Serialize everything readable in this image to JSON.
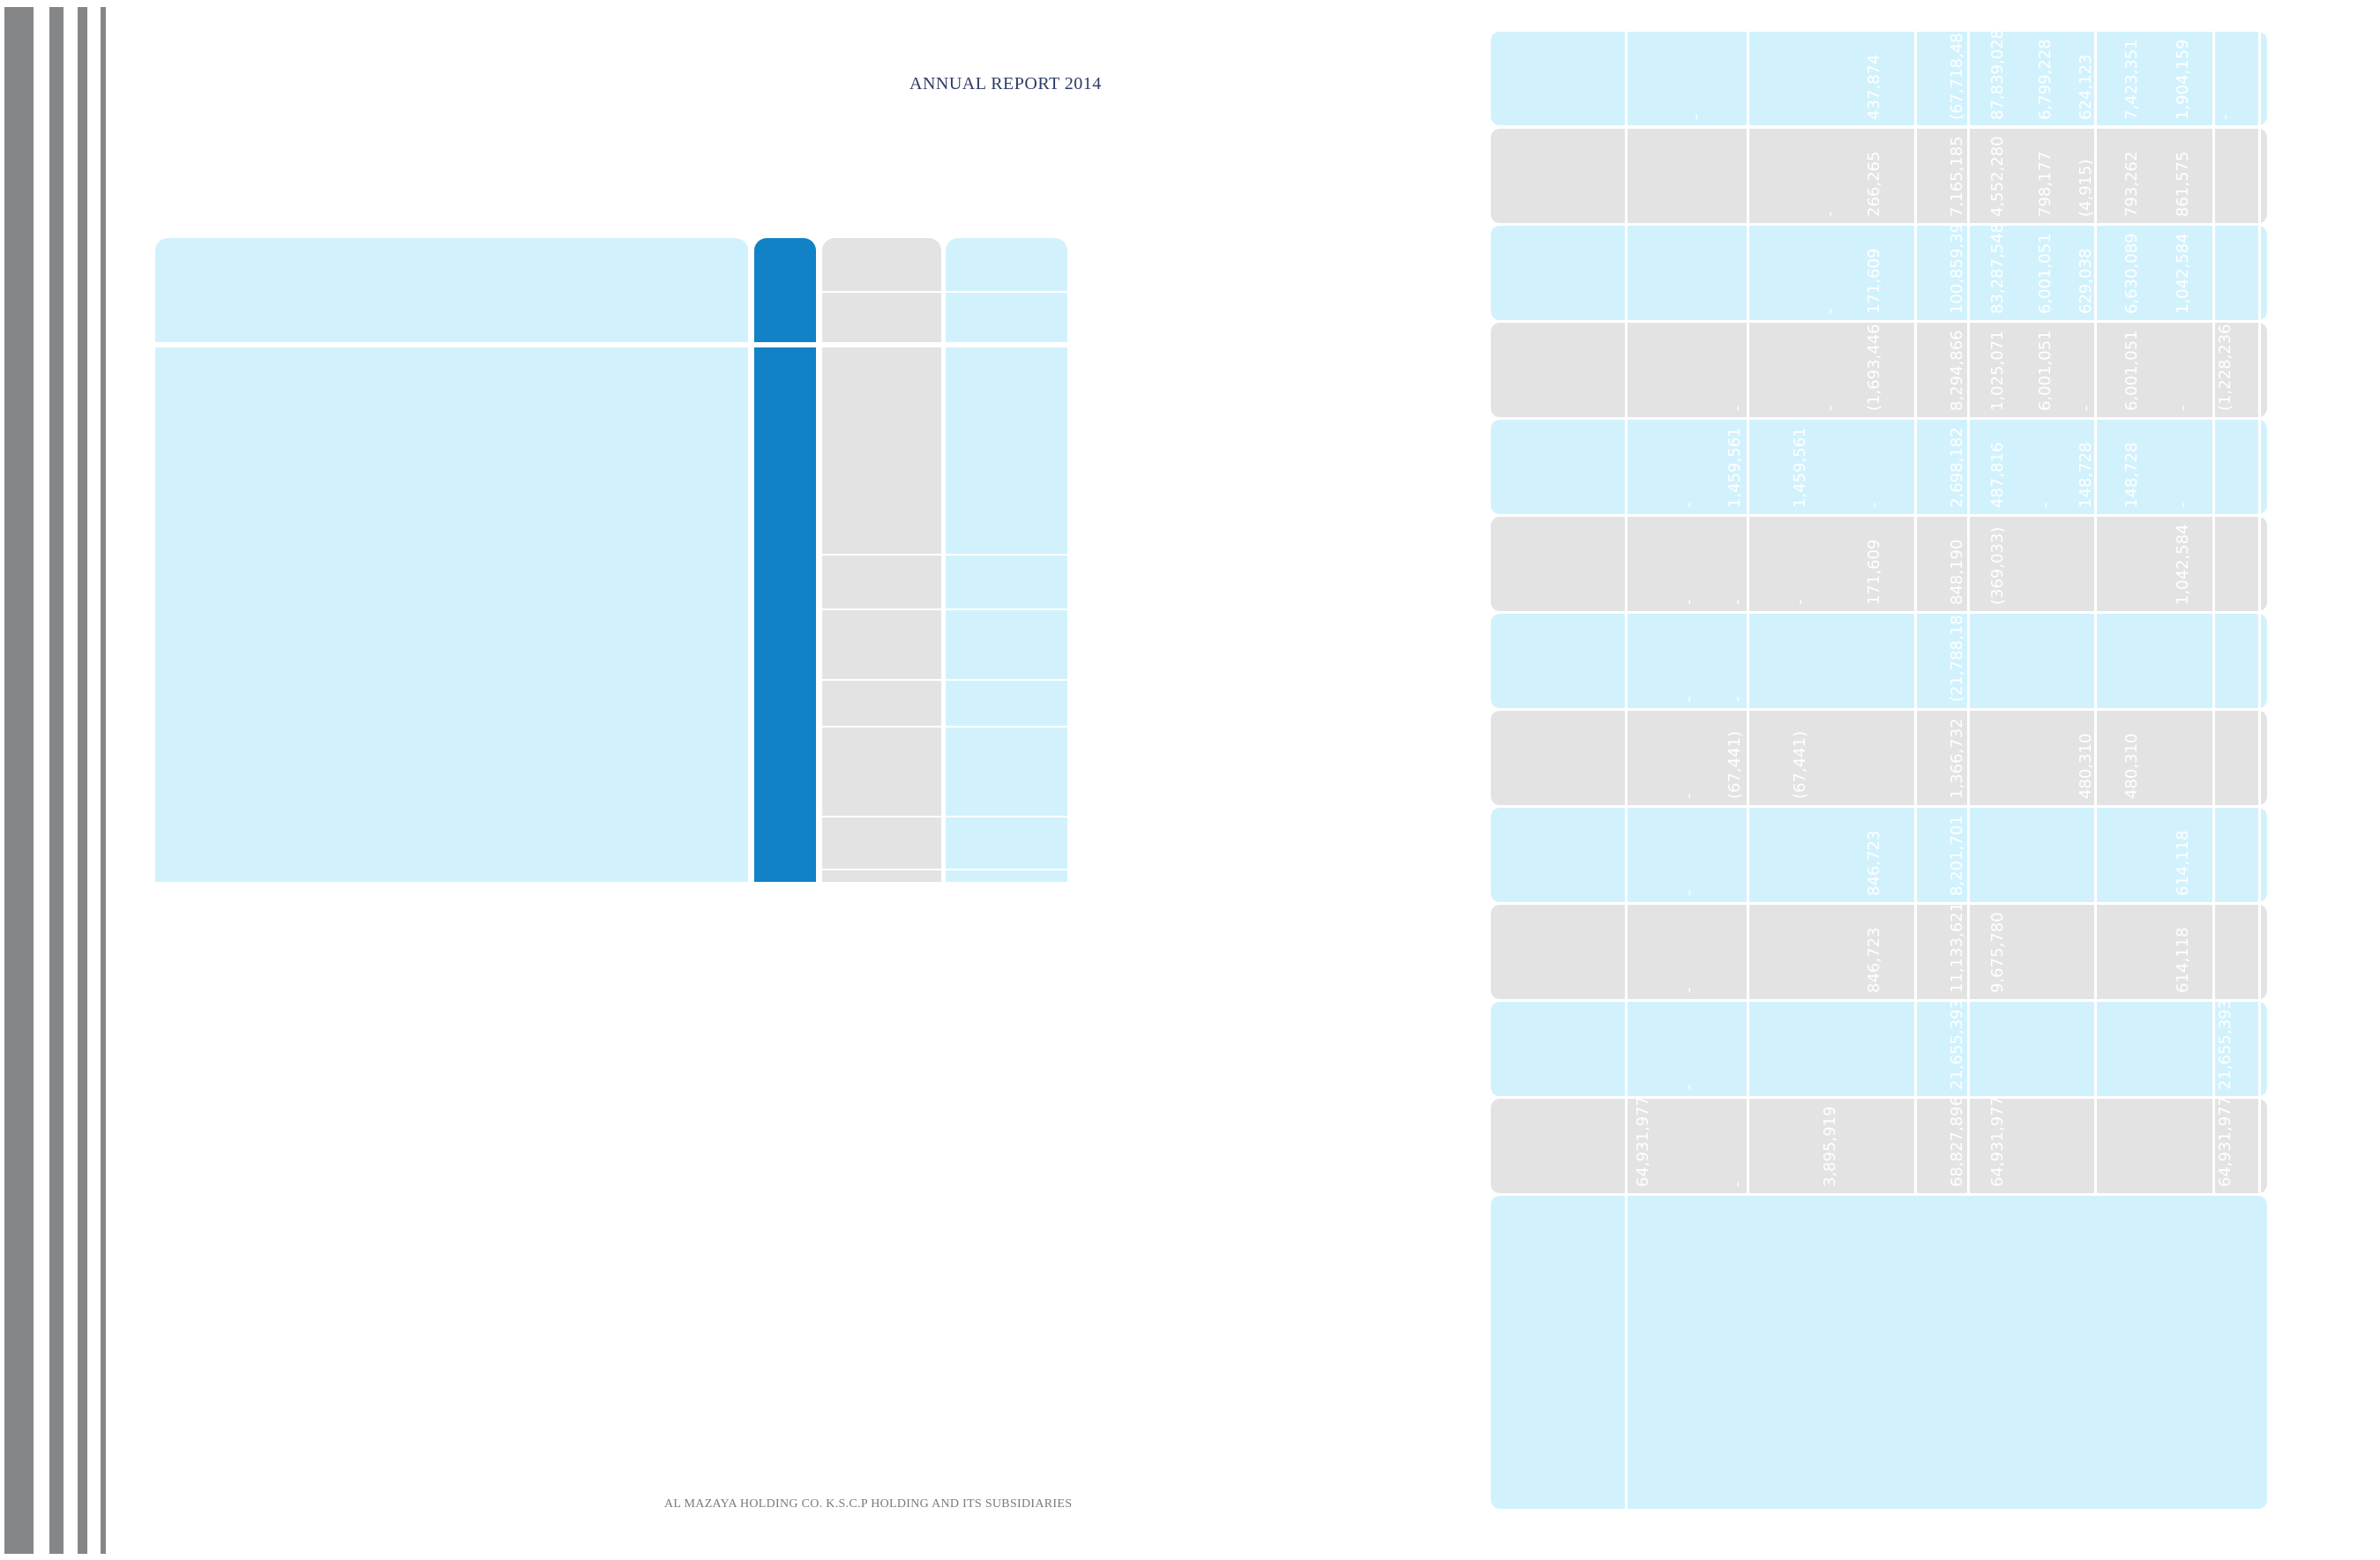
{
  "header": {
    "title": "ANNUAL REPORT 2014"
  },
  "footer": {
    "company": "AL MAZAYA HOLDING CO. K.S.C.P HOLDING AND ITS SUBSIDIARIES"
  },
  "colors": {
    "light_blue": "#d1f2fd",
    "grey": "#e3e3e4",
    "dark_blue": "#1282c6",
    "side_bars": "#858688",
    "header_text": "#2d3a66"
  },
  "table": {
    "rows": [
      [
        "",
        "",
        "",
        "",
        "-",
        "437,874",
        "-",
        "(67,718,489)",
        "87,839,028",
        "6,799,228",
        "624,123",
        "7,423,351",
        "1,904,159",
        "-"
      ],
      [
        "",
        "",
        "",
        "",
        "-",
        "266,265",
        "-",
        "7,165,185",
        "4,552,280",
        "798,177",
        "(4,915)",
        "793,262",
        "861,575",
        "-"
      ],
      [
        "",
        "",
        "",
        "",
        "-",
        "171,609",
        "-",
        "100,859,395",
        "83,287,548",
        "6,001,051",
        "629,038",
        "6,630,089",
        "1,042,584",
        "-"
      ],
      [
        "",
        "-",
        "",
        "-",
        "-",
        "(1,693,446)",
        "-",
        "8,294,866",
        "1,025,071",
        "6,001,051",
        "-",
        "6,001,051",
        "-",
        "(1,228,236)"
      ],
      [
        "-",
        "1,459,561",
        "1,459,561",
        "-",
        "-",
        "-",
        "-",
        "2,698,182",
        "487,816",
        "-",
        "148,728",
        "148,728",
        "-",
        "-"
      ],
      [
        "-",
        "-",
        "-",
        "-",
        "171,609",
        "-",
        "-",
        "848,190",
        "(369,033)",
        "-",
        "-",
        "-",
        "1,042,584",
        "-"
      ],
      [
        "-",
        "-",
        "-",
        "-",
        "-",
        "-",
        "-",
        "(21,788,181)",
        "-",
        "-",
        "-",
        "-",
        "-",
        "-"
      ],
      [
        "-",
        "(67,441)",
        "(67,441)",
        "-",
        "-",
        "-",
        "-",
        "1,366,732",
        "-",
        "480,310",
        "480,310",
        "-",
        "-",
        "-"
      ],
      [
        "-",
        "-",
        "-",
        "-",
        "-",
        "-",
        "846,723",
        "8,201,701",
        "-",
        "-",
        "-",
        "-",
        "614,118",
        "-"
      ],
      [
        "-",
        "-",
        "-",
        "-",
        "-",
        "846,723",
        "11,133,621",
        "9,675,780",
        "-",
        "-",
        "-",
        "-",
        "614,118",
        "-"
      ],
      [
        "-",
        "-",
        "-",
        "-",
        "-",
        "-",
        "-",
        "21,655,393",
        "-",
        "-",
        "-",
        "-",
        "-",
        "21,655,393"
      ],
      [
        "64,931,977",
        "-",
        "-",
        "3,895,919",
        "-",
        "-",
        "-",
        "68,827,896",
        "64,931,977",
        "-",
        "-",
        "-",
        "-",
        "64,931,977"
      ]
    ]
  }
}
